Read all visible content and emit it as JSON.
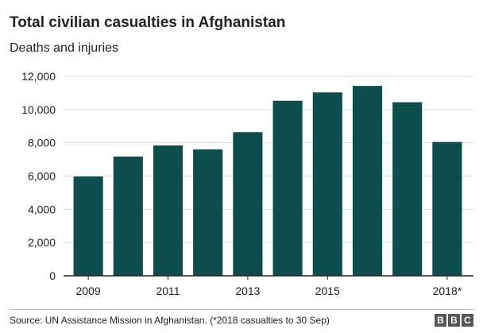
{
  "title": "Total civilian casualties in Afghanistan",
  "subtitle": "Deaths and injuries",
  "source": "Source: UN Assistance Mission in Afghanistan. (*2018 casualties to 30 Sep)",
  "logo": {
    "letters": [
      "B",
      "B",
      "C"
    ],
    "color": "#555555"
  },
  "chart_data": {
    "type": "bar",
    "categories": [
      "2009",
      "2010",
      "2011",
      "2012",
      "2013",
      "2014",
      "2015",
      "2016",
      "2017",
      "2018*"
    ],
    "values": [
      5970,
      7170,
      7840,
      7600,
      8640,
      10530,
      11030,
      11420,
      10440,
      8050
    ],
    "visible_x_labels": [
      "2009",
      "2011",
      "2013",
      "2015",
      "2018*"
    ],
    "yticks": [
      0,
      2000,
      4000,
      6000,
      8000,
      10000,
      12000
    ],
    "ytick_labels": [
      "0",
      "2,000",
      "4,000",
      "6,000",
      "8,000",
      "10,000",
      "12,000"
    ],
    "ylim": [
      0,
      12000
    ],
    "xlabel": "",
    "ylabel": "",
    "grid": true,
    "bar_color": "#0d4d4b",
    "grid_color": "#dddddd",
    "axis_color": "#222222"
  }
}
